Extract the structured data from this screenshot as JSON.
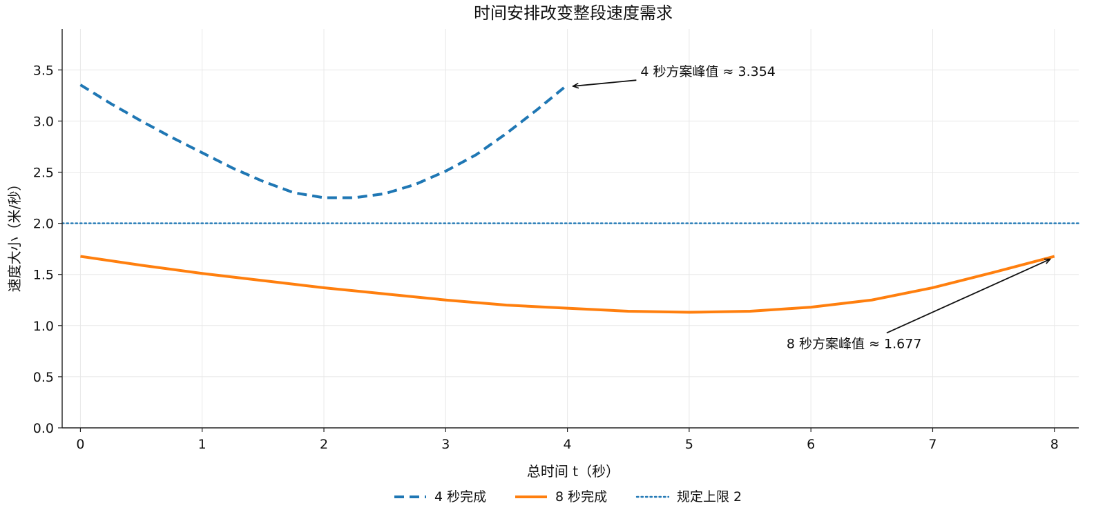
{
  "chart_data": {
    "type": "line",
    "title": "时间安排改变整段速度需求",
    "xlabel": "总时间 t（秒）",
    "ylabel": "速度大小（米/秒）",
    "xlim": [
      -0.15,
      8.2
    ],
    "ylim": [
      0,
      3.9
    ],
    "xticks": [
      "0",
      "1",
      "2",
      "3",
      "4",
      "5",
      "6",
      "7",
      "8"
    ],
    "yticks": [
      "0.0",
      "0.5",
      "1.0",
      "1.5",
      "2.0",
      "2.5",
      "3.0",
      "3.5"
    ],
    "grid": true,
    "legend_position": "bottom-center",
    "series": [
      {
        "name": "4 秒完成",
        "style": "dashed",
        "color": "#1f77b4",
        "x": [
          0,
          0.25,
          0.5,
          0.75,
          1,
          1.25,
          1.5,
          1.75,
          2,
          2.25,
          2.5,
          2.75,
          3,
          3.25,
          3.5,
          3.75,
          4
        ],
        "y": [
          3.354,
          3.17,
          3.0,
          2.84,
          2.69,
          2.54,
          2.41,
          2.3,
          2.25,
          2.25,
          2.29,
          2.38,
          2.51,
          2.67,
          2.88,
          3.11,
          3.354
        ]
      },
      {
        "name": "8 秒完成",
        "style": "solid",
        "color": "#ff7f0e",
        "x": [
          0,
          0.5,
          1,
          1.5,
          2,
          2.5,
          3,
          3.5,
          4,
          4.5,
          5,
          5.5,
          6,
          6.5,
          7,
          7.5,
          8
        ],
        "y": [
          1.677,
          1.59,
          1.51,
          1.44,
          1.37,
          1.31,
          1.25,
          1.2,
          1.17,
          1.14,
          1.13,
          1.14,
          1.18,
          1.25,
          1.37,
          1.52,
          1.677
        ]
      },
      {
        "name": "规定上限 2",
        "style": "dotted",
        "color": "#1f77b4",
        "x": [
          -0.15,
          8.2
        ],
        "y": [
          2,
          2
        ]
      }
    ],
    "annotations": [
      {
        "text": "4 秒方案峰值 ≈ 3.354",
        "point": [
          4,
          3.354
        ],
        "text_at": [
          4.6,
          3.44
        ]
      },
      {
        "text": "8 秒方案峰值 ≈ 1.677",
        "point": [
          8,
          1.677
        ],
        "text_at": [
          5.8,
          0.78
        ]
      }
    ]
  }
}
